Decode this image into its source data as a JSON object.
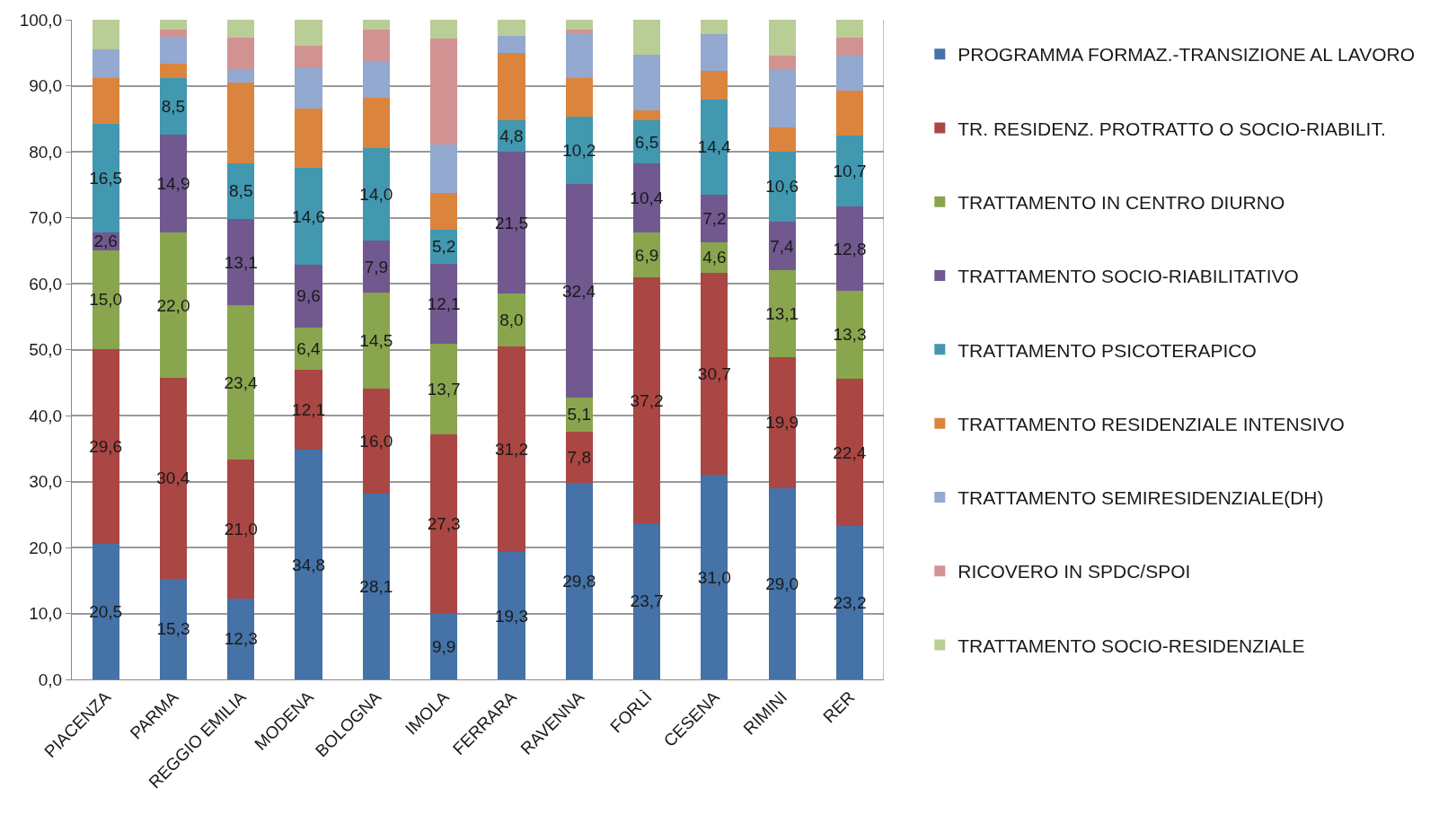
{
  "chart_data": {
    "type": "bar",
    "stacked": true,
    "grid": "y",
    "legend": "right",
    "categories": [
      "PIACENZA",
      "PARMA",
      "REGGIO EMILIA",
      "MODENA",
      "BOLOGNA",
      "IMOLA",
      "FERRARA",
      "RAVENNA",
      "FORLÌ",
      "CESENA",
      "RIMINI",
      "RER"
    ],
    "ylim": [
      0,
      100
    ],
    "yticks": [
      {
        "value": 0,
        "label": "0,0"
      },
      {
        "value": 10,
        "label": "10,0"
      },
      {
        "value": 20,
        "label": "20,0"
      },
      {
        "value": 30,
        "label": "30,0"
      },
      {
        "value": 40,
        "label": "40,0"
      },
      {
        "value": 50,
        "label": "50,0"
      },
      {
        "value": 60,
        "label": "60,0"
      },
      {
        "value": 70,
        "label": "70,0"
      },
      {
        "value": 80,
        "label": "80,0"
      },
      {
        "value": 90,
        "label": "90,0"
      },
      {
        "value": 100,
        "label": "100,0"
      }
    ],
    "series": [
      {
        "name": "PROGRAMMA FORMAZ.-TRANSIZIONE AL LAVORO",
        "color": "#4572a7",
        "values": [
          20.5,
          15.3,
          12.3,
          34.8,
          28.1,
          9.9,
          19.3,
          29.8,
          23.7,
          31.0,
          29.0,
          23.2
        ],
        "value_labels": [
          "20,5",
          "15,3",
          "12,3",
          "34,8",
          "28,1",
          "9,9",
          "19,3",
          "29,8",
          "23,7",
          "31,0",
          "29,0",
          "23,2"
        ]
      },
      {
        "name": "TR. RESIDENZ. PROTRATTO O SOCIO-RIABILIT.",
        "color": "#aa4643",
        "values": [
          29.6,
          30.4,
          21.0,
          12.1,
          16.0,
          27.3,
          31.2,
          7.8,
          37.2,
          30.7,
          19.9,
          22.4
        ],
        "value_labels": [
          "29,6",
          "30,4",
          "21,0",
          "12,1",
          "16,0",
          "27,3",
          "31,2",
          "7,8",
          "37,2",
          "30,7",
          "19,9",
          "22,4"
        ]
      },
      {
        "name": "TRATTAMENTO IN CENTRO DIURNO",
        "color": "#89a54e",
        "values": [
          15.0,
          22.0,
          23.4,
          6.4,
          14.5,
          13.7,
          8.0,
          5.1,
          6.9,
          4.6,
          13.1,
          13.3
        ],
        "value_labels": [
          "15,0",
          "22,0",
          "23,4",
          "6,4",
          "14,5",
          "13,7",
          "8,0",
          "5,1",
          "6,9",
          "4,6",
          "13,1",
          "13,3"
        ]
      },
      {
        "name": "TRATTAMENTO SOCIO-RIABILITATIVO",
        "color": "#71588f",
        "values": [
          2.6,
          14.9,
          13.1,
          9.6,
          7.9,
          12.1,
          21.5,
          32.4,
          10.4,
          7.2,
          7.4,
          12.8
        ],
        "value_labels": [
          "2,6",
          "14,9",
          "13,1",
          "9,6",
          "7,9",
          "12,1",
          "21,5",
          "32,4",
          "10,4",
          "7,2",
          "7,4",
          "12,8"
        ]
      },
      {
        "name": "TRATTAMENTO PSICOTERAPICO",
        "color": "#4198af",
        "values": [
          16.5,
          8.5,
          8.5,
          14.6,
          14.0,
          5.2,
          4.8,
          10.2,
          6.5,
          14.4,
          10.6,
          10.7
        ],
        "value_labels": [
          "16,5",
          "8,5",
          "8,5",
          "14,6",
          "14,0",
          "5,2",
          "4,8",
          "10,2",
          "6,5",
          "14,4",
          "10,6",
          "10,7"
        ]
      },
      {
        "name": "TRATTAMENTO RESIDENZIALE INTENSIVO",
        "color": "#db843d",
        "values": [
          6.9,
          2.2,
          12.2,
          9.0,
          7.6,
          5.5,
          10.2,
          5.9,
          1.5,
          4.3,
          3.7,
          6.9
        ]
      },
      {
        "name": "TRATTAMENTO SEMIRESIDENZIALE(DH)",
        "color": "#93a9cf",
        "values": [
          4.4,
          4.1,
          1.9,
          6.3,
          5.5,
          7.4,
          2.6,
          6.8,
          8.5,
          5.6,
          8.7,
          5.2
        ]
      },
      {
        "name": "RICOVERO IN SPDC/SPOI",
        "color": "#d19392",
        "values": [
          0,
          1.1,
          4.9,
          3.3,
          4.9,
          16.0,
          0,
          0.5,
          0,
          0,
          2.1,
          2.8
        ]
      },
      {
        "name": "TRATTAMENTO SOCIO-RESIDENZIALE",
        "color": "#b9cd96",
        "values": [
          4.5,
          1.5,
          2.7,
          3.9,
          1.5,
          2.9,
          2.4,
          1.5,
          5.3,
          2.2,
          5.5,
          2.7
        ]
      }
    ]
  }
}
